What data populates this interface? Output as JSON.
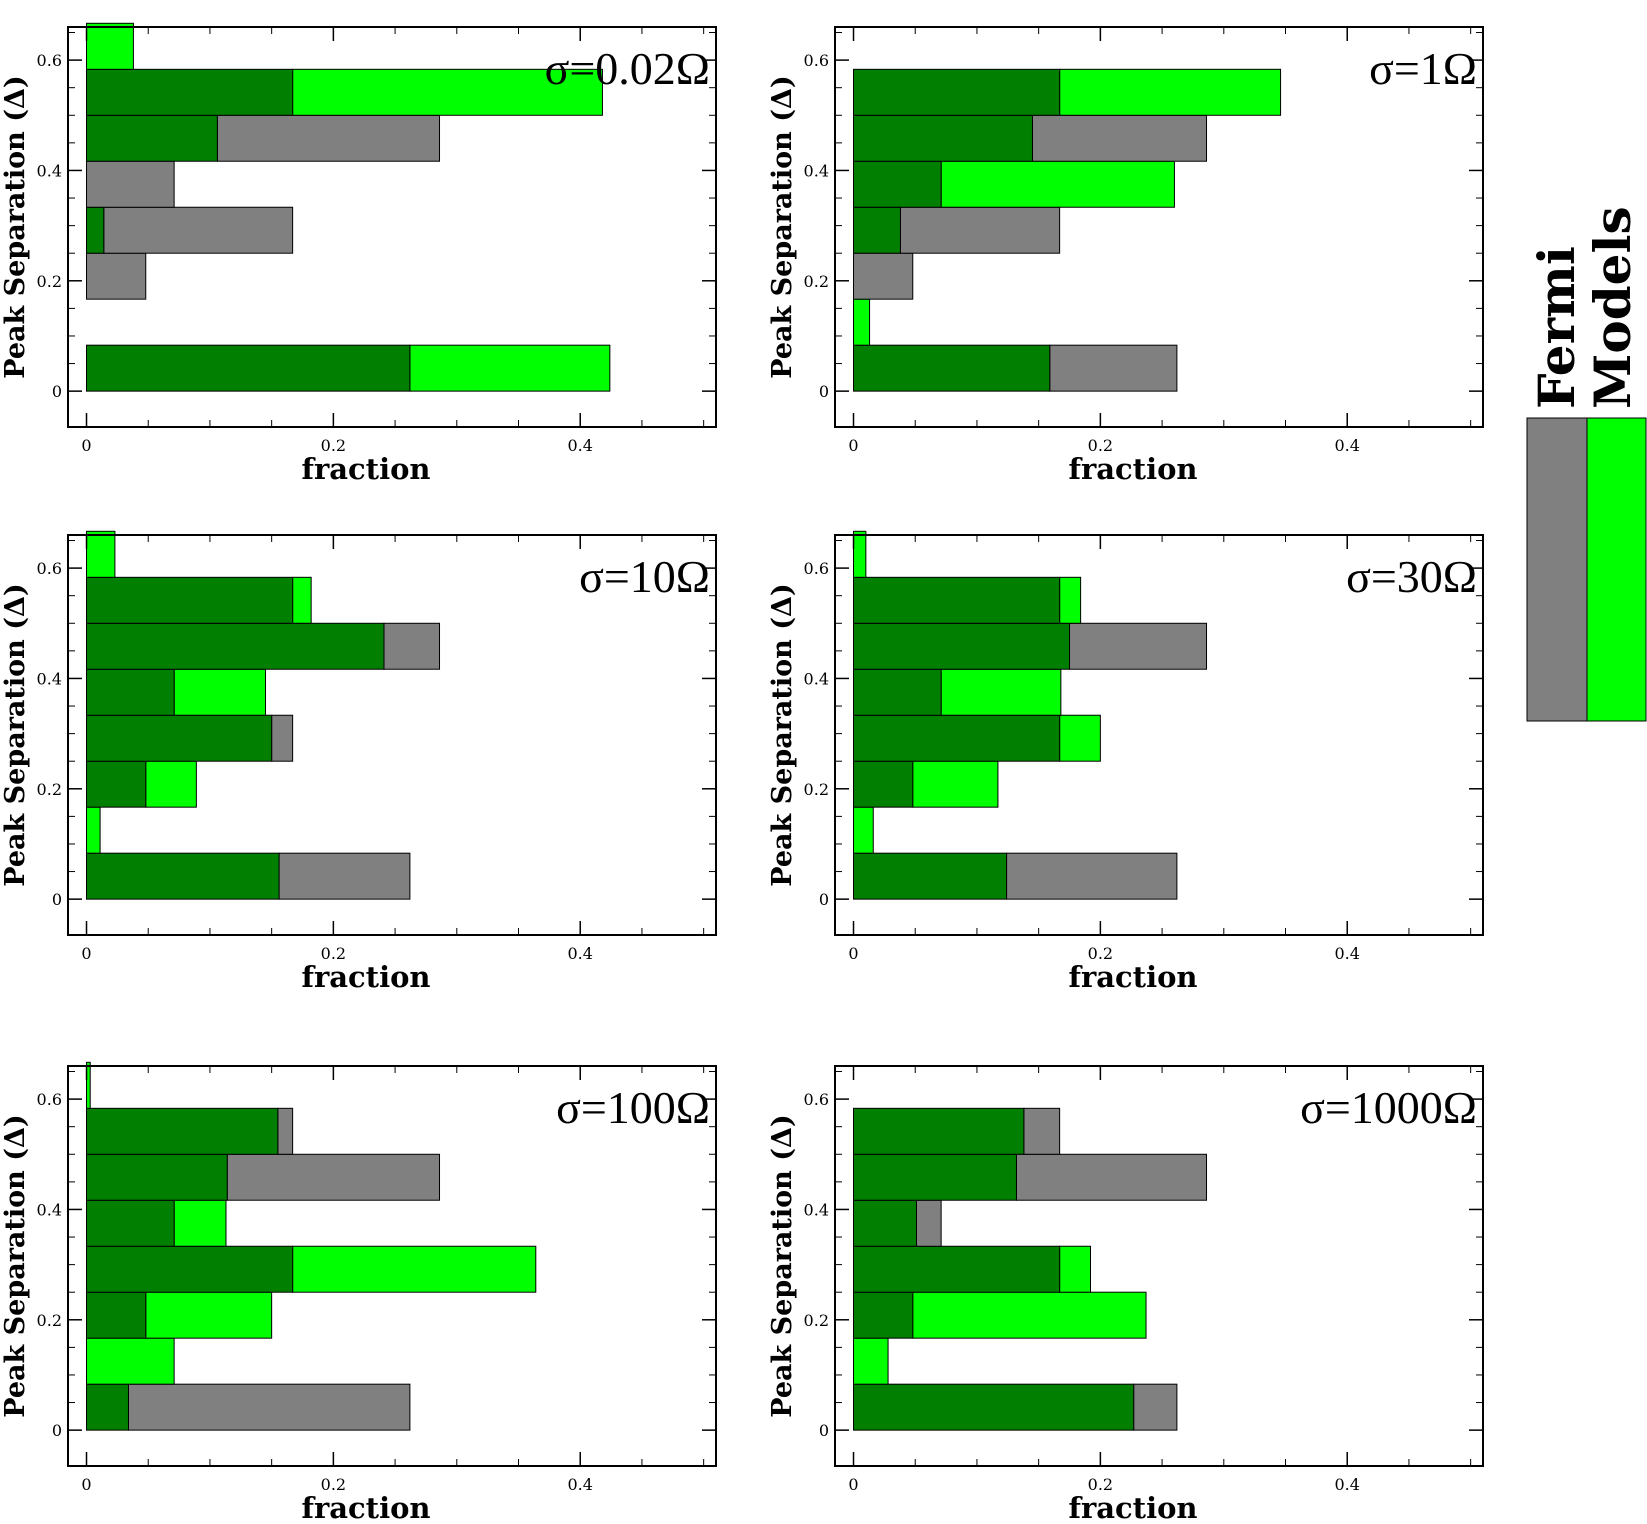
{
  "legend": {
    "fermi_label": "Fermi",
    "models_label": "Models",
    "fermi_color": "#808080",
    "models_color": "#00ff00",
    "overlap_color": "#007f00"
  },
  "chart_data": [
    {
      "type": "bar",
      "orientation": "horizontal",
      "title": "σ=0.02Ω",
      "xlabel": "fraction",
      "ylabel": "Peak Separation (Δ)",
      "xlim": [
        -0.015,
        0.51
      ],
      "ylim": [
        -0.065,
        0.66
      ],
      "xticks": [
        0,
        0.2,
        0.4
      ],
      "xtick_labels": [
        "0",
        "0.2",
        "0.4"
      ],
      "yticks": [
        0,
        0.2,
        0.4,
        0.6
      ],
      "ytick_labels": [
        "0",
        "0.2",
        "0.4",
        "0.6"
      ],
      "bin_edges": [
        0,
        0.0833,
        0.1667,
        0.25,
        0.3333,
        0.4167,
        0.5,
        0.5833,
        0.6667
      ],
      "series": [
        {
          "name": "Fermi",
          "values": [
            0.262,
            0,
            0.048,
            0.167,
            0.071,
            0.286,
            0.167,
            0
          ]
        },
        {
          "name": "Models",
          "values": [
            0.424,
            0,
            0,
            0.014,
            0,
            0.106,
            0.418,
            0.038
          ]
        }
      ]
    },
    {
      "type": "bar",
      "orientation": "horizontal",
      "title": "σ=1Ω",
      "xlabel": "fraction",
      "ylabel": "Peak Separation (Δ)",
      "xlim": [
        -0.015,
        0.51
      ],
      "ylim": [
        -0.065,
        0.66
      ],
      "xticks": [
        0,
        0.2,
        0.4
      ],
      "xtick_labels": [
        "0",
        "0.2",
        "0.4"
      ],
      "yticks": [
        0,
        0.2,
        0.4,
        0.6
      ],
      "ytick_labels": [
        "0",
        "0.2",
        "0.4",
        "0.6"
      ],
      "bin_edges": [
        0,
        0.0833,
        0.1667,
        0.25,
        0.3333,
        0.4167,
        0.5,
        0.5833,
        0.6667
      ],
      "series": [
        {
          "name": "Fermi",
          "values": [
            0.262,
            0,
            0.048,
            0.167,
            0.071,
            0.286,
            0.167,
            0
          ]
        },
        {
          "name": "Models",
          "values": [
            0.159,
            0.013,
            0,
            0.038,
            0.26,
            0.145,
            0.346,
            0
          ]
        }
      ]
    },
    {
      "type": "bar",
      "orientation": "horizontal",
      "title": "σ=10Ω",
      "xlabel": "fraction",
      "ylabel": "Peak Separation (Δ)",
      "xlim": [
        -0.015,
        0.51
      ],
      "ylim": [
        -0.065,
        0.66
      ],
      "xticks": [
        0,
        0.2,
        0.4
      ],
      "xtick_labels": [
        "0",
        "0.2",
        "0.4"
      ],
      "yticks": [
        0,
        0.2,
        0.4,
        0.6
      ],
      "ytick_labels": [
        "0",
        "0.2",
        "0.4",
        "0.6"
      ],
      "bin_edges": [
        0,
        0.0833,
        0.1667,
        0.25,
        0.3333,
        0.4167,
        0.5,
        0.5833,
        0.6667
      ],
      "series": [
        {
          "name": "Fermi",
          "values": [
            0.262,
            0,
            0.048,
            0.167,
            0.071,
            0.286,
            0.167,
            0
          ]
        },
        {
          "name": "Models",
          "values": [
            0.156,
            0.011,
            0.089,
            0.15,
            0.145,
            0.241,
            0.182,
            0.023
          ]
        }
      ]
    },
    {
      "type": "bar",
      "orientation": "horizontal",
      "title": "σ=30Ω",
      "xlabel": "fraction",
      "ylabel": "Peak Separation (Δ)",
      "xlim": [
        -0.015,
        0.51
      ],
      "ylim": [
        -0.065,
        0.66
      ],
      "xticks": [
        0,
        0.2,
        0.4
      ],
      "xtick_labels": [
        "0",
        "0.2",
        "0.4"
      ],
      "yticks": [
        0,
        0.2,
        0.4,
        0.6
      ],
      "ytick_labels": [
        "0",
        "0.2",
        "0.4",
        "0.6"
      ],
      "bin_edges": [
        0,
        0.0833,
        0.1667,
        0.25,
        0.3333,
        0.4167,
        0.5,
        0.5833,
        0.6667
      ],
      "series": [
        {
          "name": "Fermi",
          "values": [
            0.262,
            0,
            0.048,
            0.167,
            0.071,
            0.286,
            0.167,
            0
          ]
        },
        {
          "name": "Models",
          "values": [
            0.124,
            0.016,
            0.117,
            0.2,
            0.168,
            0.175,
            0.184,
            0.01
          ]
        }
      ]
    },
    {
      "type": "bar",
      "orientation": "horizontal",
      "title": "σ=100Ω",
      "xlabel": "fraction",
      "ylabel": "Peak Separation (Δ)",
      "xlim": [
        -0.015,
        0.51
      ],
      "ylim": [
        -0.065,
        0.66
      ],
      "xticks": [
        0,
        0.2,
        0.4
      ],
      "xtick_labels": [
        "0",
        "0.2",
        "0.4"
      ],
      "yticks": [
        0,
        0.2,
        0.4,
        0.6
      ],
      "ytick_labels": [
        "0",
        "0.2",
        "0.4",
        "0.6"
      ],
      "bin_edges": [
        0,
        0.0833,
        0.1667,
        0.25,
        0.3333,
        0.4167,
        0.5,
        0.5833,
        0.6667
      ],
      "series": [
        {
          "name": "Fermi",
          "values": [
            0.262,
            0,
            0.048,
            0.167,
            0.071,
            0.286,
            0.167,
            0
          ]
        },
        {
          "name": "Models",
          "values": [
            0.034,
            0.071,
            0.15,
            0.364,
            0.113,
            0.114,
            0.155,
            0.003
          ]
        }
      ]
    },
    {
      "type": "bar",
      "orientation": "horizontal",
      "title": "σ=1000Ω",
      "xlabel": "fraction",
      "ylabel": "Peak Separation (Δ)",
      "xlim": [
        -0.015,
        0.51
      ],
      "ylim": [
        -0.065,
        0.66
      ],
      "xticks": [
        0,
        0.2,
        0.4
      ],
      "xtick_labels": [
        "0",
        "0.2",
        "0.4"
      ],
      "yticks": [
        0,
        0.2,
        0.4,
        0.6
      ],
      "ytick_labels": [
        "0",
        "0.2",
        "0.4",
        "0.6"
      ],
      "bin_edges": [
        0,
        0.0833,
        0.1667,
        0.25,
        0.3333,
        0.4167,
        0.5,
        0.5833,
        0.6667
      ],
      "series": [
        {
          "name": "Fermi",
          "values": [
            0.262,
            0,
            0.048,
            0.167,
            0.071,
            0.286,
            0.167,
            0
          ]
        },
        {
          "name": "Models",
          "values": [
            0.227,
            0.028,
            0.237,
            0.192,
            0.051,
            0.132,
            0.138,
            0
          ]
        }
      ]
    }
  ]
}
